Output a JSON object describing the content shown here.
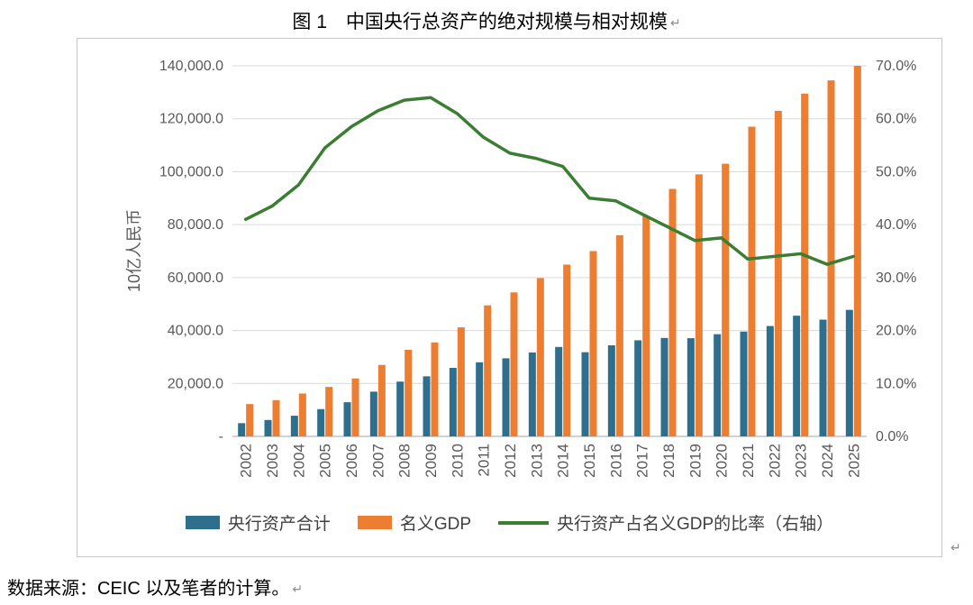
{
  "marks": {
    "return": "↵"
  },
  "footer": {
    "text": "数据来源：CEIC 以及笔者的计算。"
  },
  "chart_data": {
    "type": "bar",
    "title": "图 1　中国央行总资产的绝对规模与相对规模",
    "categories": [
      "2002",
      "2003",
      "2004",
      "2005",
      "2006",
      "2007",
      "2008",
      "2009",
      "2010",
      "2011",
      "2012",
      "2013",
      "2014",
      "2015",
      "2016",
      "2017",
      "2018",
      "2019",
      "2020",
      "2021",
      "2022",
      "2023",
      "2024",
      "2025"
    ],
    "series": [
      {
        "name": "央行资产合计",
        "type": "bar",
        "axis": "left",
        "color": "#2e6f8e",
        "values": [
          5000,
          6200,
          7800,
          10300,
          12900,
          16900,
          20700,
          22700,
          25900,
          28000,
          29500,
          31700,
          33800,
          31800,
          34400,
          36300,
          37200,
          37100,
          38600,
          39600,
          41700,
          45600,
          44100,
          47800
        ]
      },
      {
        "name": "名义GDP",
        "type": "bar",
        "axis": "left",
        "color": "#ed7d31",
        "values": [
          12200,
          13700,
          16200,
          18700,
          21900,
          27000,
          32700,
          35500,
          41200,
          49500,
          54400,
          59800,
          64900,
          70000,
          76000,
          83200,
          93500,
          99000,
          103000,
          117000,
          123000,
          129500,
          134500,
          140000
        ]
      },
      {
        "name": "央行资产占名义GDP的比率（右轴）",
        "type": "line",
        "axis": "right",
        "color": "#3a7d33",
        "values": [
          41.0,
          43.5,
          47.5,
          54.5,
          58.5,
          61.5,
          63.5,
          64.0,
          61.0,
          56.5,
          53.5,
          52.5,
          51.0,
          45.0,
          44.5,
          42.0,
          39.5,
          37.0,
          37.5,
          33.5,
          34.0,
          34.5,
          32.5,
          34.0
        ]
      }
    ],
    "left_axis": {
      "label": "10亿人民币",
      "min": 0,
      "max": 140000,
      "step": 20000,
      "tick_labels": [
        "-",
        "20,000.0",
        "40,000.0",
        "60,000.0",
        "80,000.0",
        "100,000.0",
        "120,000.0",
        "140,000.0"
      ]
    },
    "right_axis": {
      "min": 0,
      "max": 70,
      "step": 10,
      "tick_labels": [
        "0.0%",
        "10.0%",
        "20.0%",
        "30.0%",
        "40.0%",
        "50.0%",
        "60.0%",
        "70.0%"
      ]
    },
    "grid": true,
    "legend_position": "bottom"
  }
}
